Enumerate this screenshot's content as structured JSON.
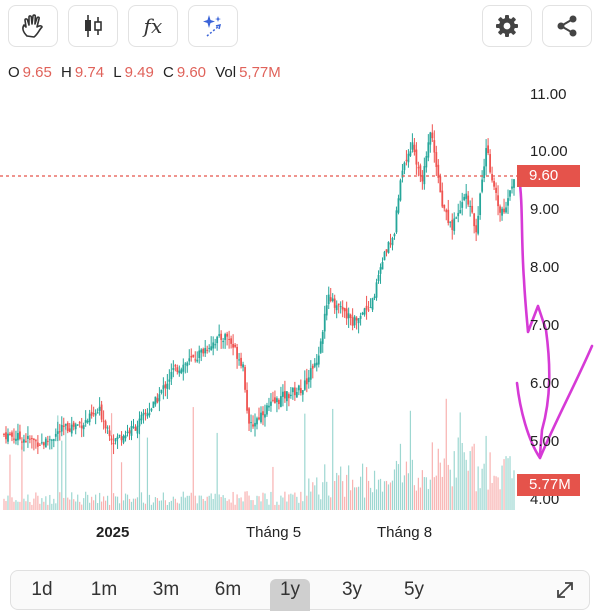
{
  "toolbar": {
    "left_icons": [
      "hand-icon",
      "candlestick-icon",
      "function-icon",
      "magic-sparkle-icon"
    ],
    "right_icons": [
      "gear-icon",
      "share-icon"
    ],
    "function_label": "fx"
  },
  "ohlc": {
    "o_label": "O",
    "o_value": "9.65",
    "h_label": "H",
    "h_value": "9.74",
    "l_label": "L",
    "l_value": "9.49",
    "c_label": "C",
    "c_value": "9.60",
    "vol_label": "Vol",
    "vol_value": "5,77M"
  },
  "price_axis": [
    "11.00",
    "10.00",
    "9.00",
    "8.00",
    "7.00",
    "6.00",
    "5.00",
    "4.00"
  ],
  "current_price_tag": "9.60",
  "volume_tag": "5.77M",
  "time_axis": {
    "t1": "2025",
    "t2": "Tháng 5",
    "t3": "Tháng 8"
  },
  "range_buttons": [
    "1d",
    "1m",
    "3m",
    "6m",
    "1y",
    "3y",
    "5y"
  ],
  "selected_range": "1y",
  "colors": {
    "up": "#26a69a",
    "down": "#ef5350",
    "annotation": "#d63ad6",
    "last_price": "#e5534b"
  },
  "chart_data": {
    "type": "candlestick",
    "price_key_points": [
      [
        0,
        5.2
      ],
      [
        20,
        5.05
      ],
      [
        30,
        5.3
      ],
      [
        40,
        5.4
      ],
      [
        48,
        5.6
      ],
      [
        55,
        5.1
      ],
      [
        65,
        5.3
      ],
      [
        75,
        5.7
      ],
      [
        85,
        6.3
      ],
      [
        95,
        6.5
      ],
      [
        105,
        6.8
      ],
      [
        112,
        6.9
      ],
      [
        120,
        6.4
      ],
      [
        123,
        5.3
      ],
      [
        130,
        5.6
      ],
      [
        140,
        5.85
      ],
      [
        150,
        6.0
      ],
      [
        158,
        6.6
      ],
      [
        163,
        7.6
      ],
      [
        170,
        7.3
      ],
      [
        175,
        7.15
      ],
      [
        185,
        7.5
      ],
      [
        190,
        8.2
      ],
      [
        196,
        8.7
      ],
      [
        200,
        9.8
      ],
      [
        205,
        10.2
      ],
      [
        210,
        9.5
      ],
      [
        214,
        10.45
      ],
      [
        220,
        9.1
      ],
      [
        225,
        8.8
      ],
      [
        232,
        9.3
      ],
      [
        237,
        8.7
      ],
      [
        242,
        10.15
      ],
      [
        248,
        9.1
      ],
      [
        252,
        9.1
      ],
      [
        256,
        9.6
      ]
    ],
    "last_price": 9.6,
    "volume_range": [
      0,
      5.77
    ],
    "ylim": [
      4,
      11
    ],
    "grid": false
  }
}
